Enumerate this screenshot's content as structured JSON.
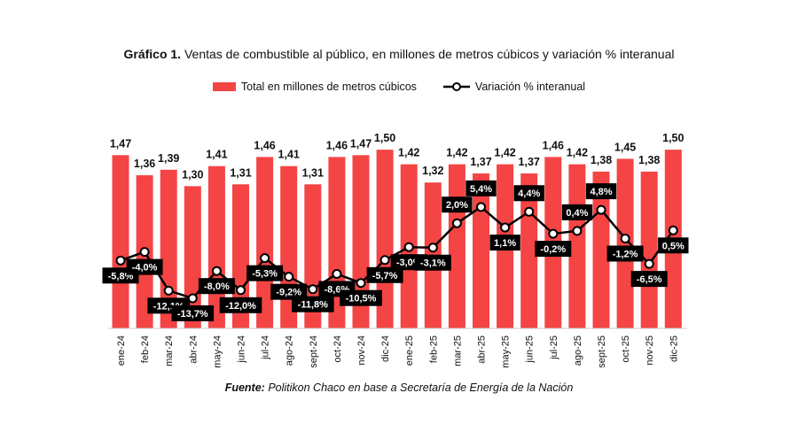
{
  "chart_data": {
    "type": "bar+line",
    "title_bold": "Gráfico 1.",
    "title": "Ventas de combustible al público, en millones de metros cúbicos y variación % interanual",
    "categories": [
      "ene-24",
      "feb-24",
      "mar-24",
      "abr-24",
      "may-24",
      "jun-24",
      "jul-24",
      "ago-24",
      "sept-24",
      "oct-24",
      "nov-24",
      "dic-24",
      "ene-25",
      "feb-25",
      "mar-25",
      "abr-25",
      "may-25",
      "jun-25",
      "jul-25",
      "ago-25",
      "sept-25",
      "oct-25",
      "nov-25",
      "dic-25"
    ],
    "series": [
      {
        "name": "Total en millones de metros cúbicos",
        "type": "bar",
        "color": "#f44444",
        "values": [
          1.47,
          1.36,
          1.39,
          1.3,
          1.41,
          1.31,
          1.46,
          1.41,
          1.31,
          1.46,
          1.47,
          1.5,
          1.42,
          1.32,
          1.42,
          1.37,
          1.42,
          1.37,
          1.46,
          1.42,
          1.38,
          1.45,
          1.38,
          1.5
        ],
        "labels": [
          "1,47",
          "1,36",
          "1,39",
          "1,30",
          "1,41",
          "1,31",
          "1,46",
          "1,41",
          "1,31",
          "1,46",
          "1,47",
          "1,50",
          "1,42",
          "1,32",
          "1,42",
          "1,37",
          "1,42",
          "1,37",
          "1,46",
          "1,42",
          "1,38",
          "1,45",
          "1,38",
          "1,50"
        ]
      },
      {
        "name": "Variación % interanual",
        "type": "line",
        "color": "#000000",
        "values": [
          -5.8,
          -4.0,
          -12.1,
          -13.7,
          -8.0,
          -12.0,
          -5.3,
          -9.2,
          -11.8,
          -8.6,
          -10.5,
          -5.7,
          -3.0,
          -3.1,
          2.0,
          5.4,
          1.1,
          4.4,
          -0.2,
          0.4,
          4.8,
          -1.2,
          -6.5,
          0.5
        ],
        "labels": [
          "-5,8%",
          "-4,0%",
          "-12,1%",
          "-13,7%",
          "-8,0%",
          "-12,0%",
          "-5,3%",
          "-9,2%",
          "-11,8%",
          "-8,6%",
          "-10,5%",
          "-5,7%",
          "-3,0%",
          "-3,1%",
          "2,0%",
          "5,4%",
          "1,1%",
          "4,4%",
          "-0,2%",
          "0,4%",
          "4,8%",
          "-1,2%",
          "-6,5%",
          "0,5%"
        ]
      }
    ],
    "legend_position": "top-center",
    "grid": false,
    "y_axis_visible": false
  },
  "source": {
    "label": "Fuente:",
    "text": "Politikon Chaco en base a Secretaría de Energía de la Nación"
  }
}
